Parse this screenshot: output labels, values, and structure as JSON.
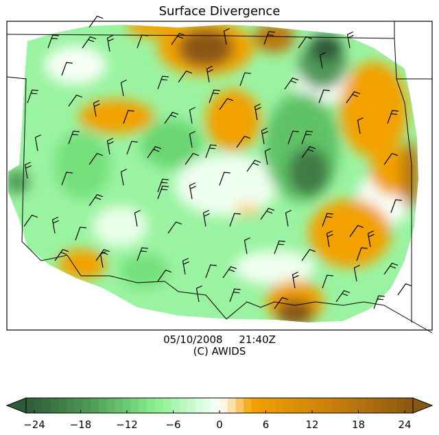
{
  "title": "Surface Divergence",
  "caption": {
    "date": "05/10/2008",
    "time": "21:40Z",
    "credit": "(C) AWIDS"
  },
  "colors": {
    "strong_convergence": "#2d5a37",
    "convergence": "#4f9a56",
    "weak_convergence": "#86ef8c",
    "near_zero": "#ffffff",
    "weak_divergence": "#ffd489",
    "divergence": "#f2a100",
    "strong_divergence": "#8a5712",
    "map_lines": "#000000"
  },
  "colorbar": {
    "min": -24,
    "max": 24,
    "ticks": [
      -24,
      -18,
      -12,
      -6,
      0,
      6,
      12,
      18,
      24
    ],
    "tick_labels": [
      "−24",
      "−18",
      "−12",
      "−6",
      "0",
      "6",
      "12",
      "18",
      "24"
    ],
    "extend": "both"
  },
  "regions": {
    "divergence_maxima": [
      "north-center",
      "south-center",
      "east",
      "southeast",
      "west-center",
      "southwest"
    ],
    "convergence_minima": [
      "northeast",
      "east-center"
    ]
  }
}
